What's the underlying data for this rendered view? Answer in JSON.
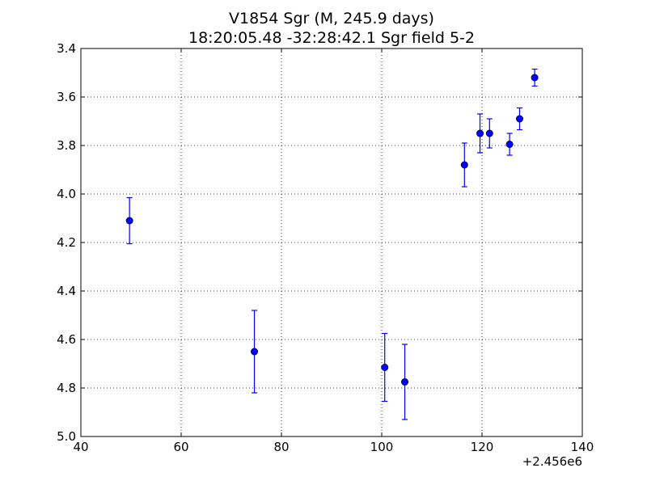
{
  "chart_data": {
    "type": "scatter",
    "title": "V1854 Sgr  (M, 245.9 days)",
    "subtitle": "18:20:05.48 -32:28:42.1 Sgr field 5-2",
    "xlabel": "",
    "ylabel": "",
    "x_offset_label": "+2.456e6",
    "xlim": [
      40,
      140
    ],
    "ylim": [
      3.4,
      5.0
    ],
    "y_inverted": true,
    "x_ticks": [
      40,
      60,
      80,
      100,
      120,
      140
    ],
    "x_tick_labels": [
      "40",
      "60",
      "80",
      "100",
      "120",
      "140"
    ],
    "y_ticks": [
      3.4,
      3.6,
      3.8,
      4.0,
      4.2,
      4.4,
      4.6,
      4.8,
      5.0
    ],
    "y_tick_labels": [
      "3.4",
      "3.6",
      "3.8",
      "4.0",
      "4.2",
      "4.4",
      "4.6",
      "4.8",
      "5.0"
    ],
    "grid": true,
    "color": "#0000ff",
    "series": [
      {
        "x": [
          49.7,
          74.6,
          100.6,
          104.6,
          116.5,
          119.6,
          121.5,
          125.5,
          127.5,
          130.5
        ],
        "y": [
          4.11,
          4.65,
          4.715,
          4.775,
          3.88,
          3.75,
          3.75,
          3.795,
          3.69,
          3.52
        ],
        "yerr": [
          0.095,
          0.17,
          0.14,
          0.155,
          0.09,
          0.08,
          0.06,
          0.045,
          0.045,
          0.035
        ]
      }
    ]
  }
}
